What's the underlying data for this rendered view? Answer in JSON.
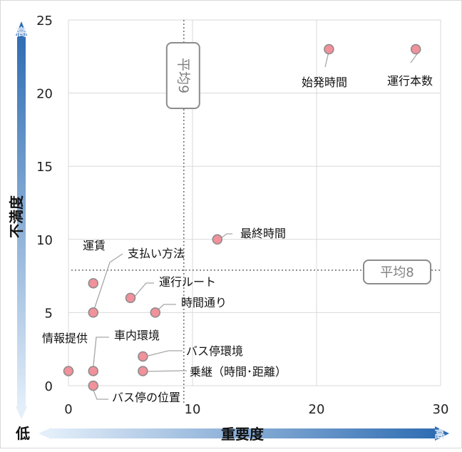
{
  "chart_data": {
    "type": "scatter",
    "title": "",
    "xlabel": "重要度",
    "ylabel": "不満度",
    "xlim": [
      0,
      30
    ],
    "ylim": [
      0,
      25
    ],
    "x_ticks": [
      "0",
      "10",
      "20",
      "30"
    ],
    "y_ticks": [
      "0",
      "5",
      "10",
      "15",
      "20",
      "25"
    ],
    "grid": true,
    "points": [
      {
        "label": "運行本数",
        "x": 28,
        "y": 23
      },
      {
        "label": "始発時間",
        "x": 21,
        "y": 23
      },
      {
        "label": "最終時間",
        "x": 12,
        "y": 10
      },
      {
        "label": "運賃",
        "x": 2,
        "y": 7
      },
      {
        "label": "運行ルート",
        "x": 5,
        "y": 6
      },
      {
        "label": "支払い方法",
        "x": 2,
        "y": 5
      },
      {
        "label": "時間通り",
        "x": 7,
        "y": 5
      },
      {
        "label": "バス停環境",
        "x": 6,
        "y": 2
      },
      {
        "label": "情報提供",
        "x": 0,
        "y": 1
      },
      {
        "label": "車内環境",
        "x": 2,
        "y": 1
      },
      {
        "label": "乗継（時間･距離）",
        "x": 6,
        "y": 1
      },
      {
        "label": "バス停の位置",
        "x": 2,
        "y": 0
      }
    ],
    "reference_lines": [
      {
        "axis": "x",
        "value": 9.3,
        "label": "平均9"
      },
      {
        "axis": "y",
        "value": 7.9,
        "label": "平均8"
      }
    ],
    "axis_arrows": {
      "y_high": "高",
      "y_low": "低",
      "x_high": "高"
    },
    "colors": {
      "point_fill": "#f0919b",
      "point_stroke": "#8a8a8a",
      "arrow_dark": "#2f6db3",
      "arrow_light": "#e3eef9",
      "grid": "#d9d9d9"
    }
  }
}
